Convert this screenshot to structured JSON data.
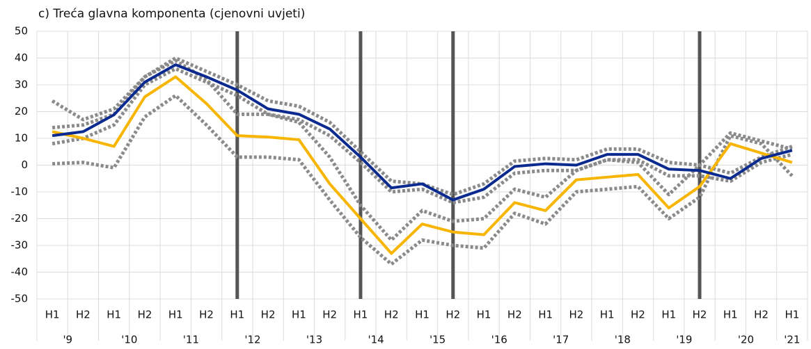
{
  "chart_data": {
    "type": "line",
    "title": "c) Treća glavna komponenta (cjenovni uvjeti)",
    "categories": [
      "H1",
      "H2",
      "H1",
      "H2",
      "H1",
      "H2",
      "H1",
      "H2",
      "H1",
      "H2",
      "H1",
      "H2",
      "H1",
      "H2",
      "H1",
      "H2",
      "H1",
      "H2",
      "H1",
      "H2",
      "H1",
      "H2",
      "H1",
      "H2",
      "H1"
    ],
    "category_groups": [
      "'9",
      "'10",
      "'11",
      "'12",
      "'13",
      "'14",
      "'15",
      "'16",
      "'17",
      "'18",
      "'19",
      "'20",
      "'21"
    ],
    "ylim": [
      -50,
      50
    ],
    "yticks": [
      -50,
      -40,
      -30,
      -20,
      -10,
      0,
      10,
      20,
      30,
      40,
      50
    ],
    "grid": true,
    "vertical_lines": [
      6,
      10,
      13,
      21
    ],
    "series": [
      {
        "color": "#8a8a8a",
        "style": "dotted",
        "values": [
          24,
          17,
          21,
          33,
          40,
          35,
          30,
          24,
          22,
          16,
          5,
          -6,
          -7,
          -11,
          -7,
          1.5,
          2.5,
          2,
          6,
          6,
          1,
          0,
          -3,
          3,
          7
        ]
      },
      {
        "color": "#8a8a8a",
        "style": "dotted",
        "values": [
          8,
          10,
          15,
          30,
          36,
          31,
          26,
          19,
          17,
          11,
          1,
          -10,
          -9,
          -14,
          -12,
          -3,
          -2,
          -2,
          2,
          2,
          -4,
          -4,
          -6,
          1,
          4
        ]
      },
      {
        "color": "#8a8a8a",
        "style": "dotted",
        "values": [
          14,
          15,
          19,
          33,
          39,
          32,
          19,
          19,
          16,
          3,
          -15,
          -28,
          -17,
          -21,
          -20,
          -9,
          -12,
          -2,
          2,
          1,
          -11,
          0,
          12,
          9,
          6
        ]
      },
      {
        "color": "#8a8a8a",
        "style": "dotted",
        "values": [
          0.5,
          1,
          -1,
          18,
          26,
          15,
          3,
          3,
          2,
          -13,
          -27,
          -37,
          -28,
          -30,
          -31,
          -18,
          -22,
          -10,
          -9,
          -8,
          -20,
          -12,
          11,
          8,
          -4
        ]
      },
      {
        "color": "#f7b500",
        "style": "solid",
        "values": [
          12.5,
          10,
          7,
          25.5,
          33,
          23,
          11,
          10.5,
          9.5,
          -7,
          -20,
          -33,
          -22,
          -25,
          -26,
          -14,
          -17,
          -5.5,
          -4.5,
          -3.5,
          -16,
          -8,
          8,
          4.5,
          1
        ]
      },
      {
        "color": "#0b2a8f",
        "style": "solid",
        "values": [
          11,
          12.5,
          18.8,
          31,
          37.5,
          33,
          28,
          21,
          19,
          13.5,
          3,
          -8.5,
          -7,
          -13,
          -9,
          -0.5,
          0.5,
          0,
          4,
          4,
          -1.5,
          -2,
          -5,
          2.5,
          5.5
        ]
      }
    ]
  }
}
